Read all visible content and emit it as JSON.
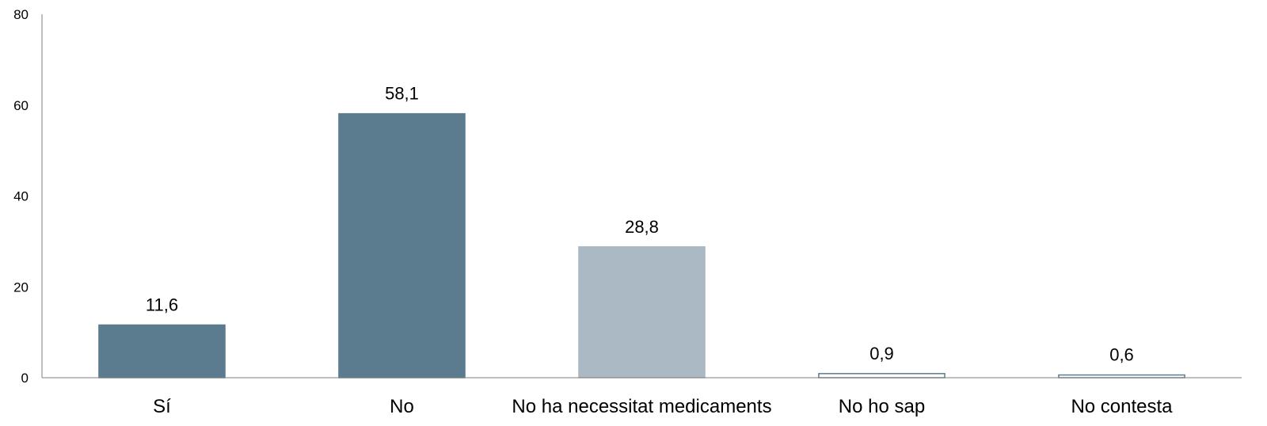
{
  "chart_data": {
    "type": "bar",
    "title": "",
    "xlabel": "",
    "ylabel": "",
    "ylim": [
      0,
      80
    ],
    "yticks": [
      0,
      20,
      40,
      60,
      80
    ],
    "grid": false,
    "legend": "none",
    "categories": [
      "Sí",
      "No",
      "No ha necessitat medicaments",
      "No ho sap",
      "No contesta"
    ],
    "values": [
      11.6,
      58.1,
      28.8,
      0.9,
      0.6
    ],
    "value_labels": [
      "11,6",
      "58,1",
      "28,8",
      "0,9",
      "0,6"
    ],
    "bar_colors": [
      "#5b7b8e",
      "#5b7b8e",
      "#aab9c3",
      "#ffffff",
      "#ffffff"
    ],
    "bar_strokes": [
      "#5b7b8e",
      "#5b7b8e",
      "#aab9c3",
      "#5b7b8e",
      "#5b7b8e"
    ],
    "axis_color": "#7f7f7f"
  }
}
